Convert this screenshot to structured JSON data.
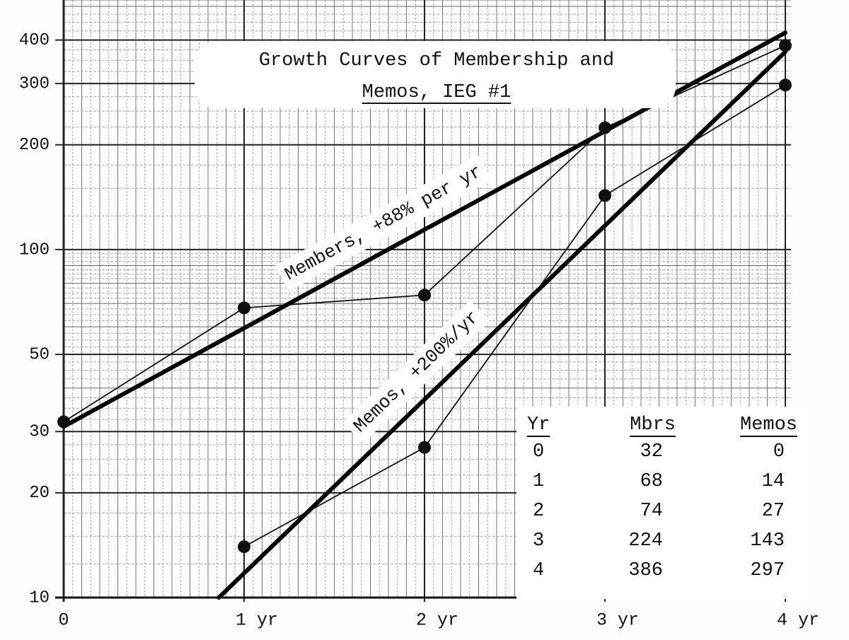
{
  "chart_data": {
    "type": "line",
    "title": [
      "Growth Curves of Membership and",
      "Memos, IEG #1"
    ],
    "x": [
      0,
      1,
      2,
      3,
      4
    ],
    "series": [
      {
        "color": "#111111",
        "values": [
          32,
          68,
          74,
          224,
          386
        ]
      },
      {
        "color": "#111111",
        "values": [
          null,
          14,
          27,
          143,
          297
        ]
      }
    ],
    "trend_lines": [
      {
        "label": "Members, +88% per yr",
        "x": [
          0,
          4
        ],
        "values": [
          31,
          420
        ]
      },
      {
        "label": "Memos, +200%/yr",
        "x": [
          0.86,
          4
        ],
        "values": [
          10,
          370
        ]
      }
    ],
    "xlim": [
      0,
      4
    ],
    "xticks": [
      0,
      {
        "value": 1,
        "label": "1 yr"
      },
      {
        "value": 2,
        "label": "2 yr"
      },
      {
        "value": 3,
        "label": "3 yr"
      },
      {
        "value": 4,
        "label": "4 yr"
      }
    ],
    "ylim": [
      10,
      500
    ],
    "yticks": [
      10,
      20,
      30,
      50,
      100,
      200,
      300,
      400
    ],
    "log_y": true,
    "grid": true,
    "table": {
      "columns": [
        "Yr",
        "Mbrs",
        "Memos"
      ],
      "rows": [
        [
          0,
          32,
          0
        ],
        [
          1,
          68,
          14
        ],
        [
          2,
          74,
          27
        ],
        [
          3,
          224,
          143
        ],
        [
          4,
          386,
          297
        ]
      ]
    }
  }
}
